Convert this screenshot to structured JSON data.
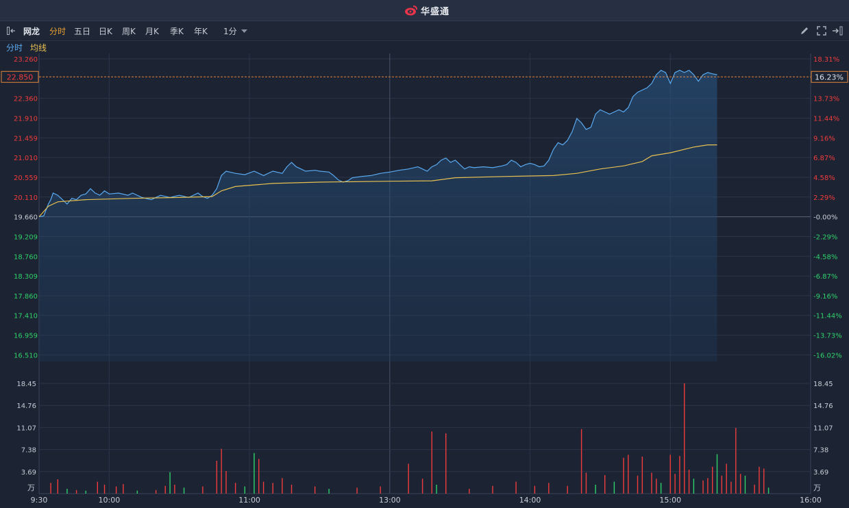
{
  "header": {
    "brand": "华盛通",
    "brand_color": "#e8344a",
    "brand_icon": "weibo-like-logo-icon"
  },
  "toolbar": {
    "stock_name": "网龙",
    "periods": [
      "分时",
      "五日",
      "日K",
      "周K",
      "月K",
      "季K",
      "年K"
    ],
    "active_period": "分时",
    "minute_select": "1分",
    "right_icons": [
      "pencil-icon",
      "fullscreen-icon",
      "exit-icon"
    ]
  },
  "legend": {
    "price_label": "分时",
    "avg_label": "均线",
    "price_color": "#5aaaf0",
    "avg_color": "#e8c050"
  },
  "colors": {
    "up": "#f03c3c",
    "down": "#2fd16a",
    "panel_bg": "#1c2333",
    "grid": "#2c3649",
    "crosshair": "#e8863a"
  },
  "crosshair": {
    "price": "22.850",
    "pct": "16.23%"
  },
  "chart_data": [
    {
      "type": "line",
      "title": "",
      "reference_price": 19.66,
      "y_ticks_left": [
        "23.260",
        "22.360",
        "21.910",
        "21.459",
        "21.010",
        "20.559",
        "20.110",
        "19.660",
        "19.209",
        "18.760",
        "18.309",
        "17.860",
        "17.410",
        "16.959",
        "16.510"
      ],
      "y_ticks_right": [
        "18.31%",
        "13.73%",
        "11.44%",
        "9.16%",
        "6.87%",
        "4.58%",
        "2.29%",
        "-0.00%",
        "-2.29%",
        "-4.58%",
        "-6.87%",
        "-9.16%",
        "-11.44%",
        "-13.73%",
        "-16.02%"
      ],
      "ylim": [
        16.36,
        23.26
      ],
      "x_ticks": [
        "9:30",
        "10:00",
        "11:00",
        "13:00",
        "14:00",
        "15:00",
        "16:00"
      ],
      "x_range_minutes": [
        0,
        330
      ],
      "series": [
        {
          "name": "分时",
          "points": [
            [
              0,
              19.66
            ],
            [
              2,
              19.68
            ],
            [
              4,
              19.95
            ],
            [
              5,
              20.05
            ],
            [
              6,
              20.2
            ],
            [
              8,
              20.15
            ],
            [
              10,
              20.05
            ],
            [
              12,
              19.95
            ],
            [
              14,
              20.08
            ],
            [
              16,
              20.05
            ],
            [
              18,
              20.15
            ],
            [
              20,
              20.18
            ],
            [
              22,
              20.3
            ],
            [
              24,
              20.2
            ],
            [
              26,
              20.15
            ],
            [
              28,
              20.25
            ],
            [
              30,
              20.18
            ],
            [
              34,
              20.2
            ],
            [
              38,
              20.15
            ],
            [
              40,
              20.2
            ],
            [
              44,
              20.1
            ],
            [
              48,
              20.05
            ],
            [
              52,
              20.15
            ],
            [
              56,
              20.1
            ],
            [
              60,
              20.15
            ],
            [
              64,
              20.1
            ],
            [
              68,
              20.2
            ],
            [
              70,
              20.12
            ],
            [
              72,
              20.08
            ],
            [
              74,
              20.15
            ],
            [
              76,
              20.3
            ],
            [
              78,
              20.6
            ],
            [
              80,
              20.7
            ],
            [
              84,
              20.65
            ],
            [
              88,
              20.62
            ],
            [
              92,
              20.7
            ],
            [
              96,
              20.6
            ],
            [
              100,
              20.7
            ],
            [
              104,
              20.65
            ],
            [
              106,
              20.8
            ],
            [
              108,
              20.9
            ],
            [
              110,
              20.8
            ],
            [
              114,
              20.7
            ],
            [
              118,
              20.72
            ],
            [
              120,
              20.7
            ],
            [
              124,
              20.68
            ],
            [
              126,
              20.6
            ],
            [
              128,
              20.5
            ],
            [
              130,
              20.45
            ],
            [
              132,
              20.48
            ],
            [
              134,
              20.55
            ],
            [
              138,
              20.58
            ],
            [
              142,
              20.6
            ],
            [
              146,
              20.65
            ],
            [
              150,
              20.68
            ],
            [
              154,
              20.72
            ],
            [
              158,
              20.75
            ],
            [
              162,
              20.8
            ],
            [
              164,
              20.75
            ],
            [
              166,
              20.7
            ],
            [
              168,
              20.8
            ],
            [
              170,
              20.85
            ],
            [
              172,
              20.95
            ],
            [
              174,
              21.0
            ],
            [
              176,
              20.9
            ],
            [
              178,
              20.95
            ],
            [
              180,
              20.85
            ],
            [
              182,
              20.75
            ],
            [
              184,
              20.8
            ],
            [
              186,
              20.78
            ],
            [
              190,
              20.8
            ],
            [
              194,
              20.78
            ],
            [
              198,
              20.82
            ],
            [
              200,
              20.85
            ],
            [
              202,
              20.95
            ],
            [
              204,
              20.9
            ],
            [
              206,
              20.8
            ],
            [
              208,
              20.85
            ],
            [
              210,
              20.88
            ],
            [
              212,
              20.85
            ],
            [
              214,
              20.8
            ],
            [
              216,
              20.82
            ],
            [
              218,
              20.95
            ],
            [
              220,
              21.2
            ],
            [
              222,
              21.35
            ],
            [
              224,
              21.3
            ],
            [
              226,
              21.4
            ],
            [
              228,
              21.6
            ],
            [
              230,
              21.9
            ],
            [
              232,
              21.8
            ],
            [
              234,
              21.65
            ],
            [
              236,
              21.7
            ],
            [
              238,
              22.0
            ],
            [
              240,
              22.1
            ],
            [
              242,
              22.05
            ],
            [
              244,
              22.0
            ],
            [
              246,
              22.05
            ],
            [
              248,
              22.1
            ],
            [
              250,
              22.05
            ],
            [
              252,
              22.15
            ],
            [
              254,
              22.4
            ],
            [
              256,
              22.5
            ],
            [
              258,
              22.55
            ],
            [
              260,
              22.6
            ],
            [
              262,
              22.7
            ],
            [
              264,
              22.9
            ],
            [
              266,
              23.0
            ],
            [
              268,
              22.95
            ],
            [
              270,
              22.7
            ],
            [
              272,
              22.95
            ],
            [
              274,
              23.0
            ],
            [
              276,
              22.95
            ],
            [
              278,
              23.0
            ],
            [
              280,
              22.9
            ],
            [
              282,
              22.75
            ],
            [
              284,
              22.9
            ],
            [
              286,
              22.95
            ],
            [
              288,
              22.92
            ],
            [
              290,
              22.9
            ]
          ]
        },
        {
          "name": "均线",
          "points": [
            [
              0,
              19.66
            ],
            [
              4,
              19.9
            ],
            [
              8,
              20.0
            ],
            [
              20,
              20.05
            ],
            [
              40,
              20.08
            ],
            [
              60,
              20.1
            ],
            [
              74,
              20.12
            ],
            [
              78,
              20.25
            ],
            [
              84,
              20.35
            ],
            [
              100,
              20.42
            ],
            [
              120,
              20.45
            ],
            [
              150,
              20.47
            ],
            [
              168,
              20.48
            ],
            [
              178,
              20.55
            ],
            [
              200,
              20.58
            ],
            [
              220,
              20.6
            ],
            [
              230,
              20.65
            ],
            [
              240,
              20.75
            ],
            [
              250,
              20.82
            ],
            [
              258,
              20.92
            ],
            [
              262,
              21.05
            ],
            [
              270,
              21.12
            ],
            [
              280,
              21.25
            ],
            [
              286,
              21.3
            ],
            [
              290,
              21.3
            ]
          ]
        }
      ]
    },
    {
      "type": "bar",
      "title": "",
      "unit": "万",
      "y_ticks": [
        "18.45",
        "14.76",
        "11.07",
        "7.38",
        "3.69"
      ],
      "ylim": [
        0,
        18.45
      ],
      "bars": [
        {
          "t": 5,
          "v": 1.8,
          "dir": "up"
        },
        {
          "t": 8,
          "v": 2.4,
          "dir": "up"
        },
        {
          "t": 12,
          "v": 0.8,
          "dir": "down"
        },
        {
          "t": 16,
          "v": 0.6,
          "dir": "up"
        },
        {
          "t": 20,
          "v": 0.5,
          "dir": "down"
        },
        {
          "t": 25,
          "v": 2.0,
          "dir": "up"
        },
        {
          "t": 28,
          "v": 1.5,
          "dir": "up"
        },
        {
          "t": 33,
          "v": 1.2,
          "dir": "up"
        },
        {
          "t": 36,
          "v": 1.6,
          "dir": "up"
        },
        {
          "t": 42,
          "v": 0.5,
          "dir": "down"
        },
        {
          "t": 50,
          "v": 0.6,
          "dir": "up"
        },
        {
          "t": 54,
          "v": 1.3,
          "dir": "up"
        },
        {
          "t": 56,
          "v": 3.6,
          "dir": "down"
        },
        {
          "t": 58,
          "v": 1.5,
          "dir": "up"
        },
        {
          "t": 62,
          "v": 1.0,
          "dir": "down"
        },
        {
          "t": 70,
          "v": 1.2,
          "dir": "up"
        },
        {
          "t": 76,
          "v": 5.5,
          "dir": "up"
        },
        {
          "t": 78,
          "v": 7.5,
          "dir": "up"
        },
        {
          "t": 80,
          "v": 3.8,
          "dir": "up"
        },
        {
          "t": 84,
          "v": 1.8,
          "dir": "up"
        },
        {
          "t": 88,
          "v": 1.2,
          "dir": "down"
        },
        {
          "t": 92,
          "v": 6.8,
          "dir": "down"
        },
        {
          "t": 94,
          "v": 5.8,
          "dir": "up"
        },
        {
          "t": 96,
          "v": 2.0,
          "dir": "up"
        },
        {
          "t": 100,
          "v": 1.8,
          "dir": "up"
        },
        {
          "t": 104,
          "v": 2.6,
          "dir": "up"
        },
        {
          "t": 108,
          "v": 1.5,
          "dir": "up"
        },
        {
          "t": 118,
          "v": 1.2,
          "dir": "up"
        },
        {
          "t": 124,
          "v": 0.8,
          "dir": "down"
        },
        {
          "t": 136,
          "v": 1.0,
          "dir": "up"
        },
        {
          "t": 146,
          "v": 1.2,
          "dir": "up"
        },
        {
          "t": 158,
          "v": 5.0,
          "dir": "up"
        },
        {
          "t": 164,
          "v": 2.5,
          "dir": "up"
        },
        {
          "t": 168,
          "v": 10.4,
          "dir": "up"
        },
        {
          "t": 170,
          "v": 1.5,
          "dir": "down"
        },
        {
          "t": 174,
          "v": 10.1,
          "dir": "up"
        },
        {
          "t": 184,
          "v": 0.8,
          "dir": "up"
        },
        {
          "t": 194,
          "v": 1.3,
          "dir": "up"
        },
        {
          "t": 204,
          "v": 2.0,
          "dir": "up"
        },
        {
          "t": 212,
          "v": 1.3,
          "dir": "up"
        },
        {
          "t": 218,
          "v": 1.8,
          "dir": "up"
        },
        {
          "t": 226,
          "v": 1.3,
          "dir": "up"
        },
        {
          "t": 232,
          "v": 10.8,
          "dir": "up"
        },
        {
          "t": 234,
          "v": 3.5,
          "dir": "up"
        },
        {
          "t": 238,
          "v": 1.5,
          "dir": "down"
        },
        {
          "t": 242,
          "v": 3.1,
          "dir": "up"
        },
        {
          "t": 246,
          "v": 2.0,
          "dir": "down"
        },
        {
          "t": 250,
          "v": 6.0,
          "dir": "up"
        },
        {
          "t": 252,
          "v": 6.5,
          "dir": "up"
        },
        {
          "t": 256,
          "v": 3.0,
          "dir": "up"
        },
        {
          "t": 258,
          "v": 6.2,
          "dir": "up"
        },
        {
          "t": 262,
          "v": 3.5,
          "dir": "up"
        },
        {
          "t": 264,
          "v": 2.5,
          "dir": "up"
        },
        {
          "t": 266,
          "v": 1.8,
          "dir": "down"
        },
        {
          "t": 270,
          "v": 6.5,
          "dir": "up"
        },
        {
          "t": 272,
          "v": 3.3,
          "dir": "up"
        },
        {
          "t": 274,
          "v": 6.3,
          "dir": "up"
        },
        {
          "t": 276,
          "v": 18.45,
          "dir": "up"
        },
        {
          "t": 278,
          "v": 4.0,
          "dir": "up"
        },
        {
          "t": 280,
          "v": 2.5,
          "dir": "down"
        },
        {
          "t": 284,
          "v": 2.2,
          "dir": "up"
        },
        {
          "t": 286,
          "v": 2.6,
          "dir": "up"
        },
        {
          "t": 288,
          "v": 4.5,
          "dir": "up"
        },
        {
          "t": 290,
          "v": 6.6,
          "dir": "down"
        },
        {
          "t": 292,
          "v": 3.0,
          "dir": "up"
        },
        {
          "t": 294,
          "v": 5.0,
          "dir": "up"
        },
        {
          "t": 296,
          "v": 2.0,
          "dir": "up"
        },
        {
          "t": 298,
          "v": 11.0,
          "dir": "up"
        },
        {
          "t": 300,
          "v": 3.3,
          "dir": "up"
        },
        {
          "t": 302,
          "v": 3.0,
          "dir": "down"
        },
        {
          "t": 306,
          "v": 1.5,
          "dir": "up"
        },
        {
          "t": 308,
          "v": 4.5,
          "dir": "up"
        },
        {
          "t": 310,
          "v": 4.2,
          "dir": "up"
        },
        {
          "t": 312,
          "v": 1.0,
          "dir": "down"
        }
      ]
    }
  ]
}
